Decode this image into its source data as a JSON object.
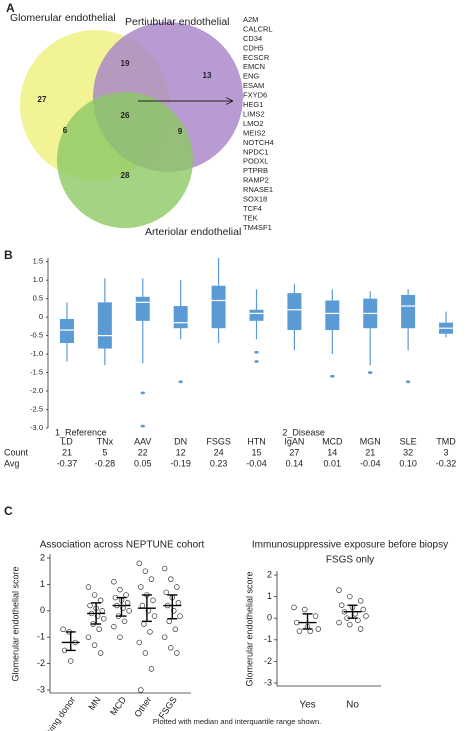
{
  "chart_data": [
    {
      "type": "venn",
      "panel": "A",
      "sets": [
        {
          "name": "Glomerular endothelial",
          "color": "#eef07a"
        },
        {
          "name": "Pertiubular endothelial",
          "color": "#a882c8"
        },
        {
          "name": "Arteriolar endothelial",
          "color": "#8cc864"
        }
      ],
      "region_values": [
        27,
        19,
        13,
        6,
        26,
        9,
        28
      ],
      "genes": [
        "A2M",
        "CALCRL",
        "CD34",
        "CDH5",
        "ECSCR",
        "EMCN",
        "ENG",
        "ESAM",
        "FXYD6",
        "HEG1",
        "LIMS2",
        "LMO2",
        "MEIS2",
        "NOTCH4",
        "NPDC1",
        "PODXL",
        "PTPRB",
        "RAMP2",
        "RNASE1",
        "SOX18",
        "TCF4",
        "TEK",
        "TM4SF1"
      ]
    },
    {
      "type": "box",
      "panel": "B",
      "color": "#5b9bd5",
      "categories": [
        "LD",
        "TNx",
        "AAV",
        "DN",
        "FSGS",
        "HTN",
        "IgAN",
        "MCD",
        "MGN",
        "SLE",
        "TMD"
      ],
      "group_labels": [
        "1_Reference",
        null,
        null,
        null,
        null,
        null,
        "2_Disease",
        null,
        null,
        null,
        null
      ],
      "whislo": [
        -1.2,
        -1.3,
        -1.25,
        -0.6,
        -0.7,
        -0.6,
        -0.9,
        -1.0,
        -1.3,
        -0.9,
        -0.55
      ],
      "q1": [
        -0.7,
        -0.85,
        -0.1,
        -0.3,
        -0.3,
        -0.1,
        -0.35,
        -0.35,
        -0.3,
        -0.3,
        -0.45
      ],
      "med": [
        -0.35,
        -0.5,
        0.4,
        -0.15,
        0.45,
        0.1,
        0.2,
        0.1,
        0.1,
        0.3,
        -0.3
      ],
      "q3": [
        -0.05,
        0.4,
        0.55,
        0.3,
        0.85,
        0.2,
        0.65,
        0.45,
        0.5,
        0.6,
        -0.15
      ],
      "whishi": [
        0.4,
        1.05,
        1.05,
        1.0,
        1.6,
        0.75,
        0.9,
        0.75,
        0.7,
        0.75,
        0.15
      ],
      "outliers": [
        [],
        [],
        [
          -2.05,
          -2.95
        ],
        [
          -1.75
        ],
        [],
        [
          -0.95,
          -1.2
        ],
        [],
        [
          -1.6
        ],
        [
          -1.5
        ],
        [
          -1.75
        ],
        []
      ],
      "ylim": [
        -3,
        1.6
      ],
      "yticks": [
        1.5,
        {
          "value": 1,
          "label": "1.0"
        },
        0.5,
        0,
        -0.5,
        {
          "value": -1,
          "label": "-1.0"
        },
        -1.5,
        {
          "value": -2,
          "label": "-2.0"
        },
        -2.5,
        {
          "value": -3,
          "label": "-3.0"
        }
      ],
      "row_labels": [
        "Count",
        "Avg"
      ],
      "counts": [
        21,
        5,
        22,
        12,
        24,
        15,
        27,
        14,
        21,
        32,
        3
      ],
      "avgs": [
        "-0.37",
        "-0.28",
        "0.05",
        "-0.19",
        "0.23",
        "-0.04",
        "0.14",
        "0.01",
        "-0.04",
        "0.10",
        "-0.32"
      ]
    },
    {
      "type": "strip",
      "panel": "C",
      "title": "Association across NEPTUNE cohort",
      "ylabel": "Glomerular endothelial score",
      "categories": [
        "Living donor",
        "MN",
        "MCD",
        "Other",
        "FSGS"
      ],
      "points": [
        [
          -0.7,
          -0.8,
          -1.2,
          -1.5,
          -1.9
        ],
        [
          0.9,
          0.6,
          0.4,
          0.2,
          0.1,
          0,
          -0.1,
          -0.2,
          -0.3,
          -0.5,
          -0.7,
          -1.0,
          -1.3,
          -1.6
        ],
        [
          1.1,
          0.8,
          0.6,
          0.5,
          0.4,
          0.3,
          0.2,
          0.1,
          0,
          -0.2,
          -0.4,
          -0.6,
          -1.0
        ],
        [
          1.8,
          1.5,
          1.2,
          0.9,
          0.6,
          0.4,
          0.2,
          0,
          -0.2,
          -0.5,
          -0.8,
          -1.2,
          -1.6,
          -2.2,
          -3.0
        ],
        [
          1.6,
          1.2,
          0.9,
          0.7,
          0.5,
          0.3,
          0.2,
          0,
          -0.2,
          -0.4,
          -0.7,
          -1.0,
          -1.4,
          -1.6
        ]
      ],
      "med": [
        -1.2,
        -0.1,
        0.2,
        0.1,
        0.2
      ],
      "q1": [
        -1.5,
        -0.5,
        -0.2,
        -0.4,
        -0.3
      ],
      "q3": [
        -0.8,
        0.3,
        0.5,
        0.6,
        0.6
      ],
      "ylim": [
        -3,
        2
      ],
      "yticks": [
        2,
        1,
        0,
        -1,
        -2,
        -3
      ]
    },
    {
      "type": "strip",
      "title": "Immunosuppressive exposure before biopsy",
      "subtitle": "FSGS only",
      "ylabel": "Glomerular endothelial score",
      "categories": [
        "Yes",
        "No"
      ],
      "points": [
        [
          0.5,
          0.4,
          0.1,
          -0.2,
          -0.4,
          -0.5,
          -0.6,
          -0.6
        ],
        [
          1.3,
          1.0,
          0.8,
          0.6,
          0.5,
          0.4,
          0.3,
          0.2,
          0.1,
          0,
          -0.1,
          -0.2,
          -0.3,
          -0.5
        ]
      ],
      "med": [
        -0.2,
        0.3
      ],
      "q1": [
        -0.5,
        0
      ],
      "q3": [
        0.2,
        0.6
      ],
      "ylim": [
        -3,
        2
      ],
      "yticks": [
        2,
        1,
        0,
        -1,
        -2,
        -3
      ]
    }
  ],
  "note": "Plotted with median and interquartile range shown."
}
